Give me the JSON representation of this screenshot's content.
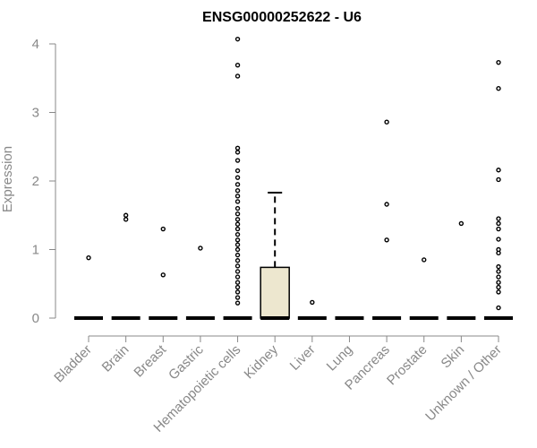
{
  "chart_data": {
    "type": "box",
    "title": "ENSG00000252622 - U6",
    "ylabel": "Expression",
    "xlabel": "",
    "ylim": [
      0,
      4.1
    ],
    "yticks": [
      0,
      1,
      2,
      3,
      4
    ],
    "grid": false,
    "legend": "none",
    "colors": {
      "box_fill": "#ede7cf",
      "box_stroke": "#000000",
      "axis": "#888888",
      "axis_text": "#888888",
      "title": "#000000",
      "point": "#000000"
    },
    "categories": [
      "Bladder",
      "Brain",
      "Breast",
      "Gastric",
      "Hematopoietic cells",
      "Kidney",
      "Liver",
      "Lung",
      "Pancreas",
      "Prostate",
      "Skin",
      "Unknown / Other"
    ],
    "boxes": [
      {
        "category": "Bladder",
        "q1": 0,
        "median": 0,
        "q3": 0,
        "whisker_low": 0,
        "whisker_high": 0,
        "outliers": [
          0.88
        ]
      },
      {
        "category": "Brain",
        "q1": 0,
        "median": 0,
        "q3": 0,
        "whisker_low": 0,
        "whisker_high": 0,
        "outliers": [
          1.44,
          1.5
        ]
      },
      {
        "category": "Breast",
        "q1": 0,
        "median": 0,
        "q3": 0,
        "whisker_low": 0,
        "whisker_high": 0,
        "outliers": [
          0.63,
          1.3
        ]
      },
      {
        "category": "Gastric",
        "q1": 0,
        "median": 0,
        "q3": 0,
        "whisker_low": 0,
        "whisker_high": 0,
        "outliers": [
          1.02
        ]
      },
      {
        "category": "Hematopoietic cells",
        "q1": 0,
        "median": 0,
        "q3": 0,
        "whisker_low": 0,
        "whisker_high": 0,
        "outliers": [
          0.22,
          0.3,
          0.38,
          0.45,
          0.52,
          0.6,
          0.68,
          0.76,
          0.84,
          0.92,
          1.0,
          1.07,
          1.14,
          1.22,
          1.3,
          1.37,
          1.44,
          1.52,
          1.6,
          1.7,
          1.78,
          1.86,
          1.95,
          2.05,
          2.15,
          2.3,
          2.42,
          2.48,
          3.53,
          3.69,
          4.07
        ]
      },
      {
        "category": "Kidney",
        "q1": 0,
        "median": 0,
        "q3": 0.74,
        "whisker_low": 0,
        "whisker_high": 1.83,
        "outliers": []
      },
      {
        "category": "Liver",
        "q1": 0,
        "median": 0,
        "q3": 0,
        "whisker_low": 0,
        "whisker_high": 0,
        "outliers": [
          0.23
        ]
      },
      {
        "category": "Lung",
        "q1": 0,
        "median": 0,
        "q3": 0,
        "whisker_low": 0,
        "whisker_high": 0,
        "outliers": []
      },
      {
        "category": "Pancreas",
        "q1": 0,
        "median": 0,
        "q3": 0,
        "whisker_low": 0,
        "whisker_high": 0,
        "outliers": [
          1.14,
          1.66,
          2.86
        ]
      },
      {
        "category": "Prostate",
        "q1": 0,
        "median": 0,
        "q3": 0,
        "whisker_low": 0,
        "whisker_high": 0,
        "outliers": [
          0.85
        ]
      },
      {
        "category": "Skin",
        "q1": 0,
        "median": 0,
        "q3": 0,
        "whisker_low": 0,
        "whisker_high": 0,
        "outliers": [
          1.38
        ]
      },
      {
        "category": "Unknown / Other",
        "q1": 0,
        "median": 0,
        "q3": 0,
        "whisker_low": 0,
        "whisker_high": 0,
        "outliers": [
          0.15,
          0.38,
          0.45,
          0.52,
          0.6,
          0.68,
          0.75,
          0.95,
          1.0,
          1.15,
          1.3,
          1.38,
          1.45,
          2.02,
          2.16,
          3.35,
          3.73
        ]
      }
    ]
  }
}
